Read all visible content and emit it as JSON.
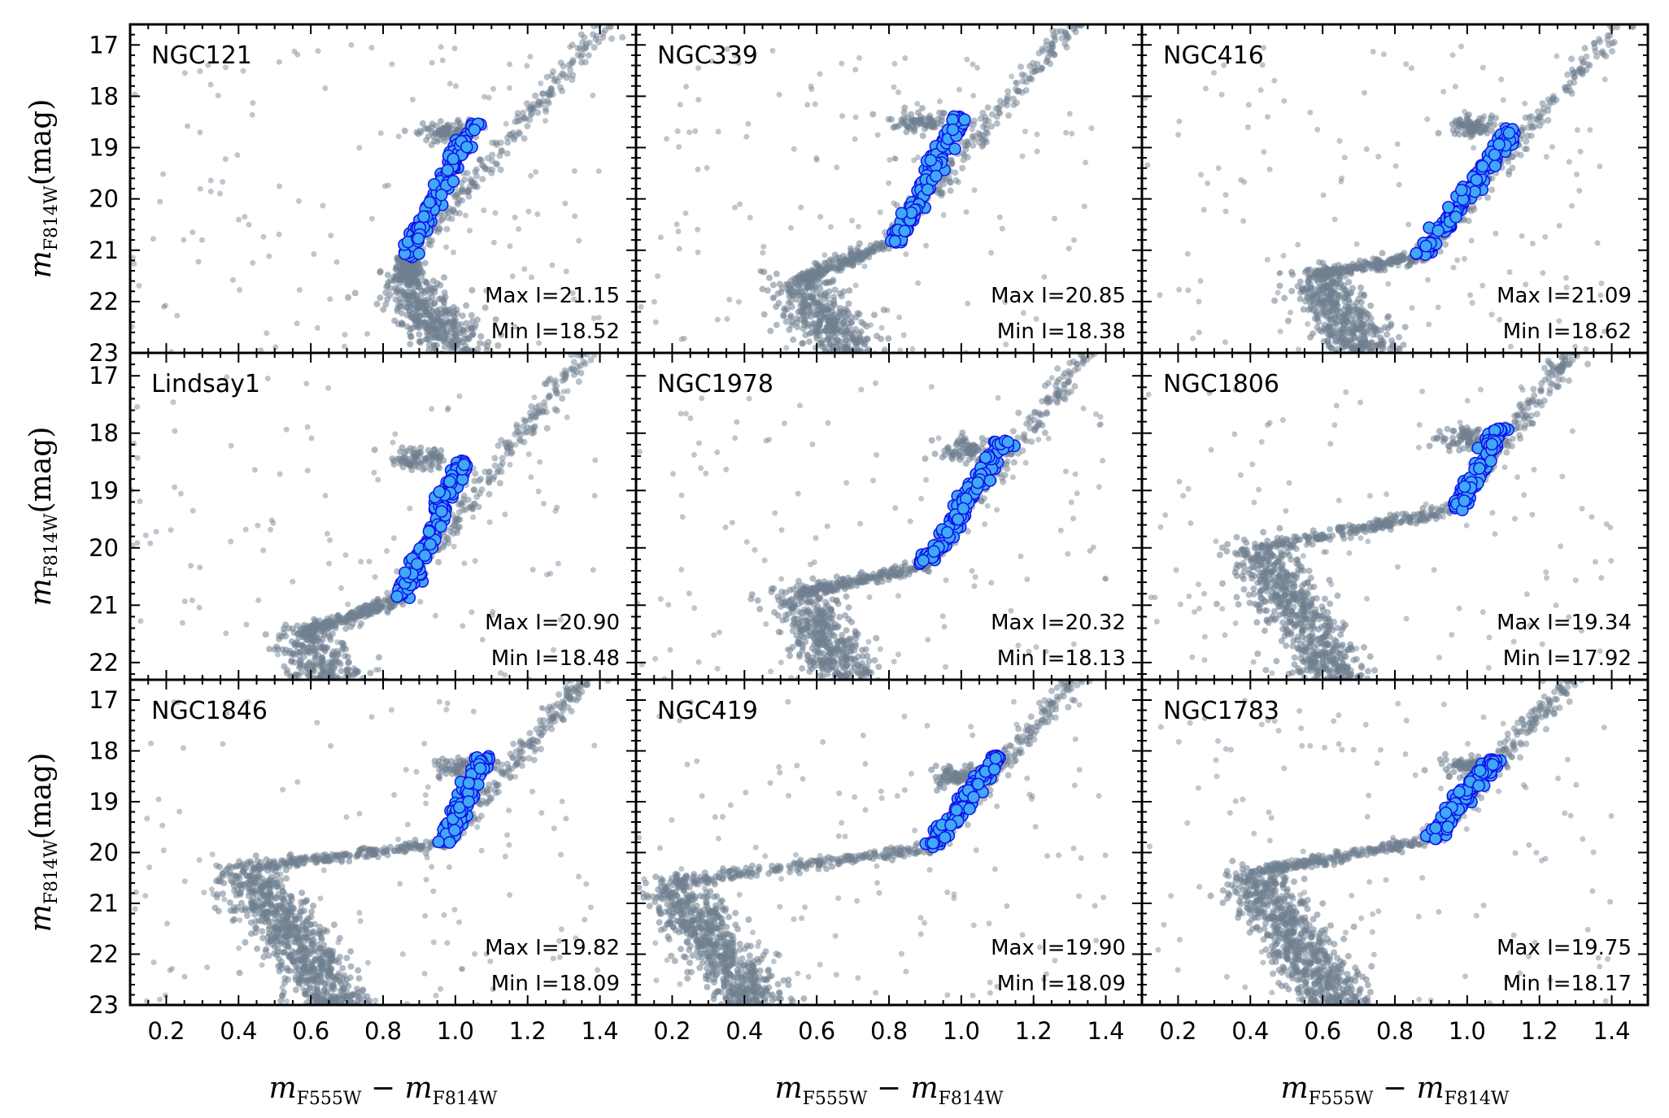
{
  "chart_data": {
    "type": "scatter",
    "layout": "3x3 grid of color-magnitude diagrams, shared axes",
    "xlim": [
      0.1,
      1.5
    ],
    "ylim": [
      23,
      16.6
    ],
    "y_inverted": true,
    "x_ticks": [
      "0.2",
      "0.4",
      "0.6",
      "0.8",
      "1.0",
      "1.2",
      "1.4"
    ],
    "y_ticks_full": [
      "17",
      "18",
      "19",
      "20",
      "21",
      "22",
      "23"
    ],
    "y_ticks_row": [
      "17",
      "18",
      "19",
      "20",
      "21",
      "22"
    ],
    "x_label": {
      "main": "m",
      "sub1": "F555W",
      "minus": " − ",
      "sub2": "F814W"
    },
    "y_label": {
      "main": "m",
      "sub": "F814W",
      "unit": "(mag)"
    },
    "colors": {
      "all_stars": "#708090",
      "selected_fill": "#3fa9f5",
      "selected_edge": "#1010ee"
    },
    "series_roles": [
      "all stars (gray)",
      "selected stars (blue)"
    ],
    "panels": [
      {
        "name": "NGC121",
        "max_label": "Max I=21.15",
        "min_label": "Min I=18.52",
        "max_I": 21.15,
        "min_I": 18.52,
        "sel_color_range": [
          0.86,
          1.05
        ],
        "to_x": 0.87,
        "to_y": 21.6,
        "sgb_x": 0.87,
        "ms_center": [
          0.66,
          22.3
        ],
        "rc": [
          0.98,
          18.7
        ]
      },
      {
        "name": "NGC339",
        "max_label": "Max I=20.85",
        "min_label": "Min I=18.38",
        "max_I": 20.85,
        "min_I": 18.38,
        "sel_color_range": [
          0.82,
          1.0
        ],
        "to_x": 0.55,
        "to_y": 21.6,
        "sgb_x": 0.8,
        "ms_center": [
          0.6,
          22.4
        ],
        "rc": [
          0.9,
          18.5
        ]
      },
      {
        "name": "NGC416",
        "max_label": "Max I=21.09",
        "min_label": "Min I=18.62",
        "max_I": 21.09,
        "min_I": 18.62,
        "sel_color_range": [
          0.88,
          1.13
        ],
        "to_x": 0.58,
        "to_y": 21.5,
        "sgb_x": 0.88,
        "ms_center": [
          0.68,
          22.3
        ],
        "rc": [
          1.02,
          18.6
        ]
      },
      {
        "name": "Lindsay1",
        "max_label": "Max I=20.90",
        "min_label": "Min I=18.48",
        "max_I": 20.9,
        "min_I": 18.48,
        "sel_color_range": [
          0.85,
          1.02
        ],
        "to_x": 0.58,
        "to_y": 21.5,
        "sgb_x": 0.84,
        "ms_center": [
          0.58,
          22.0
        ],
        "rc": [
          0.9,
          18.45
        ]
      },
      {
        "name": "NGC1978",
        "max_label": "Max I=20.32",
        "min_label": "Min I=18.13",
        "max_I": 20.32,
        "min_I": 18.13,
        "sel_color_range": [
          0.9,
          1.12
        ],
        "to_x": 0.55,
        "to_y": 20.8,
        "sgb_x": 0.9,
        "ms_center": [
          0.65,
          21.6
        ],
        "rc": [
          1.02,
          18.3
        ]
      },
      {
        "name": "NGC1806",
        "max_label": "Max I=19.34",
        "min_label": "Min I=17.92",
        "max_I": 19.34,
        "min_I": 17.92,
        "sel_color_range": [
          0.97,
          1.09
        ],
        "to_x": 0.42,
        "to_y": 20.0,
        "sgb_x": 0.96,
        "ms_center": [
          0.5,
          21.0
        ],
        "rc": [
          1.0,
          18.1
        ]
      },
      {
        "name": "NGC1846",
        "max_label": "Max I=19.82",
        "min_label": "Min I=18.09",
        "max_I": 19.82,
        "min_I": 18.09,
        "sel_color_range": [
          0.97,
          1.08
        ],
        "to_x": 0.42,
        "to_y": 20.3,
        "sgb_x": 0.97,
        "ms_center": [
          0.45,
          20.8
        ],
        "rc": [
          1.02,
          18.3
        ]
      },
      {
        "name": "NGC419",
        "max_label": "Max I=19.90",
        "min_label": "Min I=18.09",
        "max_I": 19.9,
        "min_I": 18.09,
        "sel_color_range": [
          0.92,
          1.1
        ],
        "to_x": 0.2,
        "to_y": 20.6,
        "sgb_x": 0.92,
        "ms_center": [
          0.2,
          20.9
        ],
        "rc": [
          1.0,
          18.5
        ]
      },
      {
        "name": "NGC1783",
        "max_label": "Max I=19.75",
        "min_label": "Min I=18.17",
        "max_I": 19.75,
        "min_I": 18.17,
        "sel_color_range": [
          0.9,
          1.07
        ],
        "to_x": 0.4,
        "to_y": 20.4,
        "sgb_x": 0.9,
        "ms_center": [
          0.4,
          20.8
        ],
        "rc": [
          1.0,
          18.3
        ]
      }
    ]
  }
}
